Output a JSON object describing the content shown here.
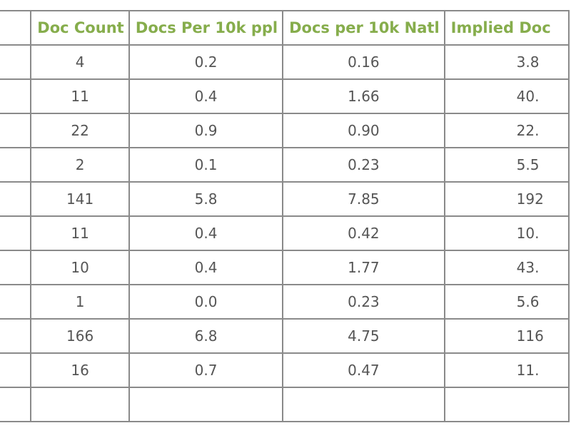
{
  "table": {
    "headers": [
      "",
      "Doc Count",
      "Docs Per 10k ppl",
      "Docs per 10k Natl",
      "Implied Doc"
    ],
    "rows": [
      [
        "",
        "4",
        "0.2",
        "0.16",
        "3.8"
      ],
      [
        "",
        "11",
        "0.4",
        "1.66",
        "40."
      ],
      [
        "",
        "22",
        "0.9",
        "0.90",
        "22."
      ],
      [
        "",
        "2",
        "0.1",
        "0.23",
        "5.5"
      ],
      [
        "",
        "141",
        "5.8",
        "7.85",
        "192"
      ],
      [
        "",
        "11",
        "0.4",
        "0.42",
        "10."
      ],
      [
        "",
        "10",
        "0.4",
        "1.77",
        "43."
      ],
      [
        "",
        "1",
        "0.0",
        "0.23",
        "5.6"
      ],
      [
        "",
        "166",
        "6.8",
        "4.75",
        "116"
      ],
      [
        "",
        "16",
        "0.7",
        "0.47",
        "11."
      ],
      [
        "",
        "",
        "",
        "",
        ""
      ]
    ]
  }
}
